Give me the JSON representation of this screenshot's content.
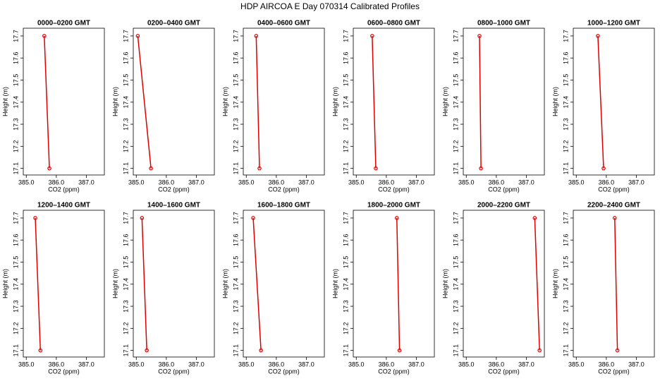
{
  "title": "HDP AIRCOA E  Day 070314  Calibrated Profiles",
  "chart_data": [
    {
      "type": "line",
      "title": "0000–0200 GMT",
      "xlabel": "CO2 (ppm)",
      "ylabel": "Height (m)",
      "color": "#e00000",
      "x": [
        385.6,
        385.77
      ],
      "values": [
        17.7,
        17.1
      ],
      "xlim": [
        384.9,
        387.6
      ],
      "ylim": [
        17.07,
        17.735
      ],
      "xticks": [
        {
          "value": 385,
          "label": "385.0"
        },
        {
          "value": 386,
          "label": "386.0"
        },
        {
          "value": 387,
          "label": "387.0"
        }
      ],
      "yticks": [
        17.1,
        17.2,
        17.3,
        17.4,
        17.5,
        17.6,
        17.7
      ]
    },
    {
      "type": "line",
      "title": "0200–0400 GMT",
      "xlabel": "CO2 (ppm)",
      "ylabel": "Height (m)",
      "color": "#e00000",
      "x": [
        385.05,
        385.49
      ],
      "values": [
        17.7,
        17.1
      ],
      "xlim": [
        384.9,
        387.6
      ],
      "ylim": [
        17.07,
        17.735
      ],
      "xticks": [
        {
          "value": 385,
          "label": "385.0"
        },
        {
          "value": 386,
          "label": "386.0"
        },
        {
          "value": 387,
          "label": "387.0"
        }
      ],
      "yticks": [
        17.1,
        17.2,
        17.3,
        17.4,
        17.5,
        17.6,
        17.7
      ]
    },
    {
      "type": "line",
      "title": "0400–0600 GMT",
      "xlabel": "CO2 (ppm)",
      "ylabel": "Height (m)",
      "color": "#e00000",
      "x": [
        385.33,
        385.44
      ],
      "values": [
        17.7,
        17.1
      ],
      "xlim": [
        384.9,
        387.6
      ],
      "ylim": [
        17.07,
        17.735
      ],
      "xticks": [
        {
          "value": 385,
          "label": "385.0"
        },
        {
          "value": 386,
          "label": "386.0"
        },
        {
          "value": 387,
          "label": "387.0"
        }
      ],
      "yticks": [
        17.1,
        17.2,
        17.3,
        17.4,
        17.5,
        17.6,
        17.7
      ]
    },
    {
      "type": "line",
      "title": "0600–0800 GMT",
      "xlabel": "CO2 (ppm)",
      "ylabel": "Height (m)",
      "color": "#e00000",
      "x": [
        385.53,
        385.65
      ],
      "values": [
        17.7,
        17.1
      ],
      "xlim": [
        384.9,
        387.6
      ],
      "ylim": [
        17.07,
        17.735
      ],
      "xticks": [
        {
          "value": 385,
          "label": "385.0"
        },
        {
          "value": 386,
          "label": "386.0"
        },
        {
          "value": 387,
          "label": "387.0"
        }
      ],
      "yticks": [
        17.1,
        17.2,
        17.3,
        17.4,
        17.5,
        17.6,
        17.7
      ]
    },
    {
      "type": "line",
      "title": "0800–1000 GMT",
      "xlabel": "CO2 (ppm)",
      "ylabel": "Height (m)",
      "color": "#e00000",
      "x": [
        385.44,
        385.49
      ],
      "values": [
        17.7,
        17.1
      ],
      "xlim": [
        384.9,
        387.6
      ],
      "ylim": [
        17.07,
        17.735
      ],
      "xticks": [
        {
          "value": 385,
          "label": "385.0"
        },
        {
          "value": 386,
          "label": "386.0"
        },
        {
          "value": 387,
          "label": "387.0"
        }
      ],
      "yticks": [
        17.1,
        17.2,
        17.3,
        17.4,
        17.5,
        17.6,
        17.7
      ]
    },
    {
      "type": "line",
      "title": "1000–1200 GMT",
      "xlabel": "CO2 (ppm)",
      "ylabel": "Height (m)",
      "color": "#e00000",
      "x": [
        385.72,
        385.91
      ],
      "values": [
        17.7,
        17.1
      ],
      "xlim": [
        384.9,
        387.6
      ],
      "ylim": [
        17.07,
        17.735
      ],
      "xticks": [
        {
          "value": 385,
          "label": "385.0"
        },
        {
          "value": 386,
          "label": "386.0"
        },
        {
          "value": 387,
          "label": "387.0"
        }
      ],
      "yticks": [
        17.1,
        17.2,
        17.3,
        17.4,
        17.5,
        17.6,
        17.7
      ]
    },
    {
      "type": "line",
      "title": "1200–1400 GMT",
      "xlabel": "CO2 (ppm)",
      "ylabel": "Height (m)",
      "color": "#e00000",
      "x": [
        385.3,
        385.47
      ],
      "values": [
        17.7,
        17.1
      ],
      "xlim": [
        384.9,
        387.6
      ],
      "ylim": [
        17.07,
        17.735
      ],
      "xticks": [
        {
          "value": 385,
          "label": "385.0"
        },
        {
          "value": 386,
          "label": "386.0"
        },
        {
          "value": 387,
          "label": "387.0"
        }
      ],
      "yticks": [
        17.1,
        17.2,
        17.3,
        17.4,
        17.5,
        17.6,
        17.7
      ]
    },
    {
      "type": "line",
      "title": "1400–1600 GMT",
      "xlabel": "CO2 (ppm)",
      "ylabel": "Height (m)",
      "color": "#e00000",
      "x": [
        385.19,
        385.35
      ],
      "values": [
        17.7,
        17.1
      ],
      "xlim": [
        384.9,
        387.6
      ],
      "ylim": [
        17.07,
        17.735
      ],
      "xticks": [
        {
          "value": 385,
          "label": "385.0"
        },
        {
          "value": 386,
          "label": "386.0"
        },
        {
          "value": 387,
          "label": "387.0"
        }
      ],
      "yticks": [
        17.1,
        17.2,
        17.3,
        17.4,
        17.5,
        17.6,
        17.7
      ]
    },
    {
      "type": "line",
      "title": "1600–1800 GMT",
      "xlabel": "CO2 (ppm)",
      "ylabel": "Height (m)",
      "color": "#e00000",
      "x": [
        385.23,
        385.49
      ],
      "values": [
        17.7,
        17.1
      ],
      "xlim": [
        384.9,
        387.6
      ],
      "ylim": [
        17.07,
        17.735
      ],
      "xticks": [
        {
          "value": 385,
          "label": "385.0"
        },
        {
          "value": 386,
          "label": "386.0"
        },
        {
          "value": 387,
          "label": "387.0"
        }
      ],
      "yticks": [
        17.1,
        17.2,
        17.3,
        17.4,
        17.5,
        17.6,
        17.7
      ]
    },
    {
      "type": "line",
      "title": "1800–2000 GMT",
      "xlabel": "CO2 (ppm)",
      "ylabel": "Height (m)",
      "color": "#e00000",
      "x": [
        386.35,
        386.44
      ],
      "values": [
        17.7,
        17.1
      ],
      "xlim": [
        384.9,
        387.6
      ],
      "ylim": [
        17.07,
        17.735
      ],
      "xticks": [
        {
          "value": 385,
          "label": "385.0"
        },
        {
          "value": 386,
          "label": "386.0"
        },
        {
          "value": 387,
          "label": "387.0"
        }
      ],
      "yticks": [
        17.1,
        17.2,
        17.3,
        17.4,
        17.5,
        17.6,
        17.7
      ]
    },
    {
      "type": "line",
      "title": "2000–2200 GMT",
      "xlabel": "CO2 (ppm)",
      "ylabel": "Height (m)",
      "color": "#e00000",
      "x": [
        387.28,
        387.44
      ],
      "values": [
        17.7,
        17.1
      ],
      "xlim": [
        384.9,
        387.6
      ],
      "ylim": [
        17.07,
        17.735
      ],
      "xticks": [
        {
          "value": 385,
          "label": "385.0"
        },
        {
          "value": 386,
          "label": "386.0"
        },
        {
          "value": 387,
          "label": "387.0"
        }
      ],
      "yticks": [
        17.1,
        17.2,
        17.3,
        17.4,
        17.5,
        17.6,
        17.7
      ]
    },
    {
      "type": "line",
      "title": "2200–2400 GMT",
      "xlabel": "CO2 (ppm)",
      "ylabel": "Height (m)",
      "color": "#e00000",
      "x": [
        386.28,
        386.37
      ],
      "values": [
        17.7,
        17.1
      ],
      "xlim": [
        384.9,
        387.6
      ],
      "ylim": [
        17.07,
        17.735
      ],
      "xticks": [
        {
          "value": 385,
          "label": "385.0"
        },
        {
          "value": 386,
          "label": "386.0"
        },
        {
          "value": 387,
          "label": "387.0"
        }
      ],
      "yticks": [
        17.1,
        17.2,
        17.3,
        17.4,
        17.5,
        17.6,
        17.7
      ]
    }
  ]
}
